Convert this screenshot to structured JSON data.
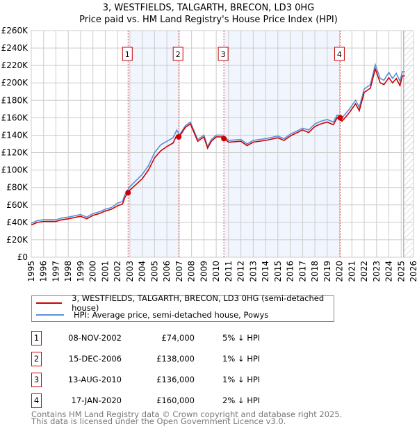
{
  "chart_data": {
    "type": "line",
    "title": "3, WESTFIELDS, TALGARTH, BRECON, LD3 0HG",
    "subtitle": "Price paid vs. HM Land Registry's House Price Index (HPI)",
    "xlim": [
      1995,
      2026
    ],
    "ylim": [
      0,
      260000
    ],
    "y_ticks": [
      0,
      20000,
      40000,
      60000,
      80000,
      100000,
      120000,
      140000,
      160000,
      180000,
      200000,
      220000,
      240000,
      260000
    ],
    "y_tick_labels": [
      "£0",
      "£20K",
      "£40K",
      "£60K",
      "£80K",
      "£100K",
      "£120K",
      "£140K",
      "£160K",
      "£180K",
      "£200K",
      "£220K",
      "£240K",
      "£260K"
    ],
    "x_ticks": [
      "1995",
      "1996",
      "1997",
      "1998",
      "1999",
      "2000",
      "2001",
      "2002",
      "2003",
      "2004",
      "2005",
      "2006",
      "2007",
      "2008",
      "2009",
      "2010",
      "2011",
      "2012",
      "2013",
      "2014",
      "2015",
      "2016",
      "2017",
      "2018",
      "2019",
      "2020",
      "2021",
      "2022",
      "2023",
      "2024",
      "2025",
      "2026"
    ],
    "grid": true,
    "hatched_from": 2025.2,
    "shaded_ranges": [
      [
        2002.85,
        2006.96
      ],
      [
        2010.62,
        2020.05
      ]
    ],
    "x": [
      1995,
      1995.5,
      1996,
      1997,
      1997.5,
      1998,
      1999,
      1999.5,
      2000,
      2000.5,
      2001,
      2001.5,
      2002,
      2002.4,
      2002.6,
      2003,
      2004,
      2004.5,
      2005,
      2005.5,
      2006,
      2006.5,
      2006.8,
      2007,
      2007.5,
      2007.9,
      2008.5,
      2009,
      2009.3,
      2009.6,
      2010,
      2010.5,
      2011,
      2012,
      2012.5,
      2013,
      2014,
      2015,
      2015.5,
      2016,
      2017,
      2017.5,
      2018,
      2018.5,
      2019,
      2019.5,
      2019.8,
      2020.2,
      2020.8,
      2021.3,
      2021.6,
      2022,
      2022.5,
      2022.9,
      2023.3,
      2023.6,
      2024,
      2024.3,
      2024.6,
      2024.9,
      2025.1,
      2025.3
    ],
    "series": [
      {
        "name": "3, WESTFIELDS, TALGARTH, BRECON, LD3 0HG (semi-detached house)",
        "color": "#cc0000",
        "values": [
          37000,
          40000,
          41000,
          41000,
          43000,
          44000,
          47000,
          44000,
          48000,
          50000,
          53000,
          55000,
          59000,
          61000,
          69000,
          77000,
          90000,
          100000,
          114000,
          122000,
          127000,
          131000,
          140000,
          138000,
          149000,
          153000,
          133000,
          138000,
          125000,
          133000,
          138000,
          138000,
          132000,
          133000,
          128000,
          132000,
          134000,
          137000,
          134000,
          139000,
          146000,
          143000,
          150000,
          153000,
          155000,
          152000,
          160000,
          156000,
          166000,
          176000,
          168000,
          189000,
          194000,
          216000,
          200000,
          198000,
          206000,
          200000,
          205000,
          197000,
          208000,
          208000
        ]
      },
      {
        "name": "HPI: Average price, semi-detached house, Powys",
        "color": "#5b8fd6",
        "values": [
          39000,
          42000,
          43000,
          43000,
          45000,
          46000,
          49000,
          46000,
          50000,
          52000,
          55000,
          57000,
          62000,
          64000,
          72000,
          81000,
          95000,
          105000,
          120000,
          129000,
          133000,
          137000,
          146000,
          140000,
          151000,
          155000,
          135000,
          140000,
          127000,
          135000,
          140000,
          140000,
          134000,
          135000,
          130000,
          134000,
          136000,
          139000,
          136000,
          141000,
          148000,
          146000,
          153000,
          156000,
          158000,
          155000,
          163000,
          160000,
          170000,
          180000,
          172000,
          193000,
          198000,
          221000,
          205000,
          203000,
          212000,
          205000,
          211000,
          202000,
          213000,
          213000
        ]
      }
    ],
    "sales": [
      {
        "label": "1",
        "x": 2002.85,
        "price": 74000,
        "date": "08-NOV-2002",
        "price_text": "£74,000",
        "hpi_text": "5% ↓ HPI"
      },
      {
        "label": "2",
        "x": 2006.96,
        "price": 138000,
        "date": "15-DEC-2006",
        "price_text": "£138,000",
        "hpi_text": "1% ↓ HPI"
      },
      {
        "label": "3",
        "x": 2010.62,
        "price": 136000,
        "date": "13-AUG-2010",
        "price_text": "£136,000",
        "hpi_text": "1% ↓ HPI"
      },
      {
        "label": "4",
        "x": 2020.05,
        "price": 160000,
        "date": "17-JAN-2020",
        "price_text": "£160,000",
        "hpi_text": "2% ↓ HPI"
      }
    ]
  },
  "footer": {
    "line1": "Contains HM Land Registry data © Crown copyright and database right 2025.",
    "line2": "This data is licensed under the Open Government Licence v3.0."
  }
}
